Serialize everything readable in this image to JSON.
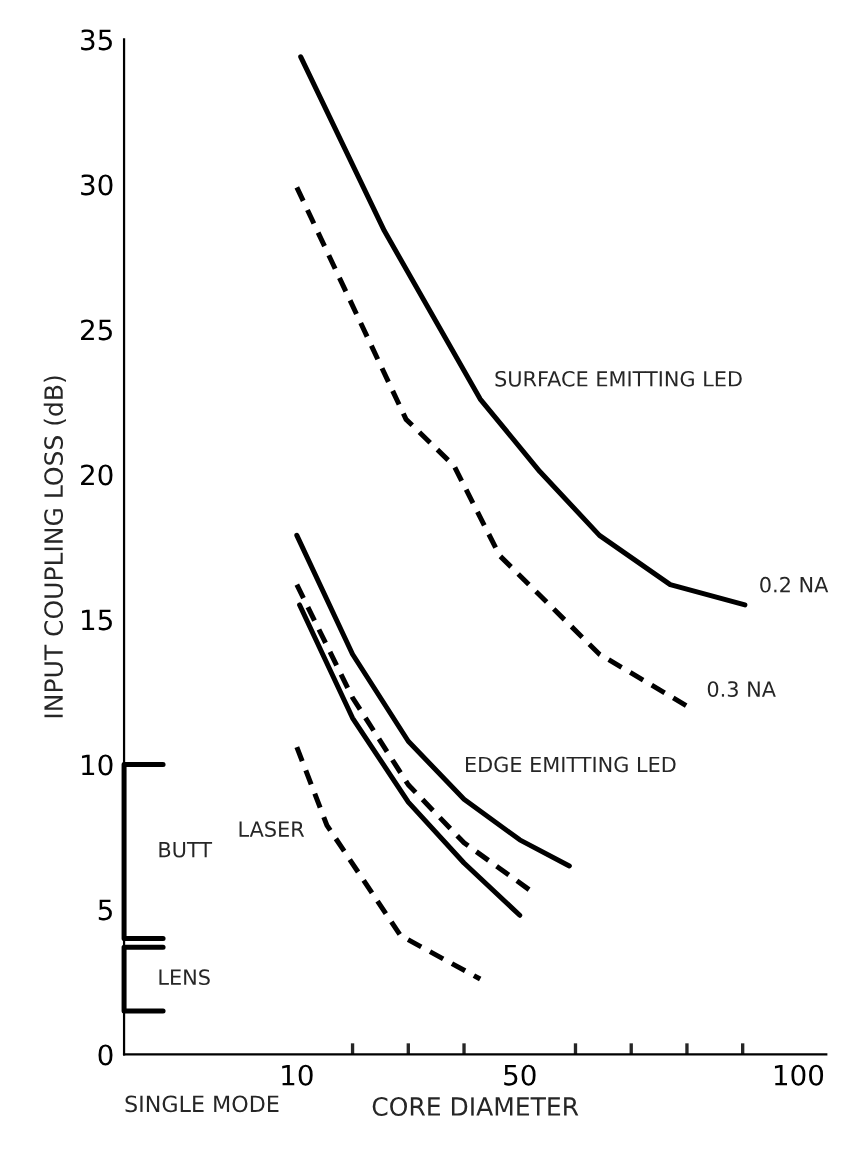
{
  "chart_data": {
    "type": "line",
    "xlabel": "CORE DIAMETER",
    "ylabel": "INPUT COUPLING LOSS (dB)",
    "xlim": [
      -21,
      105
    ],
    "ylim": [
      0,
      35
    ],
    "xticks": [
      10,
      {
        "value": 20,
        "label": null
      },
      {
        "value": 30,
        "label": null
      },
      {
        "value": 40,
        "label": null
      },
      50,
      {
        "value": 60,
        "label": null
      },
      {
        "value": 70,
        "label": null
      },
      {
        "value": 80,
        "label": null
      },
      {
        "value": 90,
        "label": null
      },
      100
    ],
    "yticks": [
      0,
      5,
      10,
      15,
      20,
      25,
      30,
      35
    ],
    "grid": false,
    "legend": false,
    "series": [
      {
        "color": "#000000",
        "line_style": "solid",
        "x": [
          10.7,
          25.7,
          42.9,
          53.6,
          64.3,
          77,
          90.4
        ],
        "values": [
          34.4,
          28.4,
          22.6,
          20.1,
          17.9,
          16.2,
          15.5
        ]
      },
      {
        "color": "#000000",
        "line_style": "dashed",
        "x": [
          10,
          29.6,
          38.2,
          46.4,
          64.3,
          81
        ],
        "values": [
          29.9,
          21.9,
          20.3,
          17.2,
          13.8,
          11.9
        ]
      },
      {
        "color": "#000000",
        "line_style": "solid",
        "x": [
          10,
          20,
          30,
          40,
          50,
          58.9
        ],
        "values": [
          17.9,
          13.8,
          10.8,
          8.8,
          7.4,
          6.5
        ]
      },
      {
        "color": "#000000",
        "line_style": "dashed",
        "x": [
          10,
          20,
          30,
          40,
          53
        ],
        "values": [
          16.2,
          12.3,
          9.3,
          7.3,
          5.5
        ]
      },
      {
        "color": "#000000",
        "line_style": "solid",
        "x": [
          10.5,
          20,
          30,
          40,
          50
        ],
        "values": [
          15.5,
          11.6,
          8.7,
          6.6,
          4.8
        ]
      },
      {
        "color": "#000000",
        "line_style": "dashed",
        "x": [
          10,
          15.4,
          28.6,
          42.9
        ],
        "values": [
          10.6,
          7.9,
          4.1,
          2.6
        ]
      },
      {
        "color": "#000000",
        "line_style": "solid",
        "x": [
          -14,
          -21,
          -21,
          -14
        ],
        "values": [
          10,
          10,
          4,
          4
        ]
      },
      {
        "color": "#000000",
        "line_style": "solid",
        "x": [
          -14,
          -21,
          -21,
          -14
        ],
        "values": [
          3.7,
          3.7,
          1.5,
          1.5
        ]
      }
    ],
    "annotations": [
      {
        "text": "SURFACE EMITTING LED",
        "x": 42.9,
        "y": 22.6
      },
      {
        "text": "0.2 NA",
        "x": 90.4,
        "y": 15.5
      },
      {
        "text": "0.3 NA",
        "x": 81,
        "y": 11.9
      },
      {
        "text": "EDGE EMITTING LED",
        "x": 37.5,
        "y": 9.3
      },
      {
        "text": "LASER",
        "x": 15.4,
        "y": 7.9
      },
      {
        "text": "BUTT",
        "x": -21,
        "y": 7
      },
      {
        "text": "LENS",
        "x": -21,
        "y": 2.6
      },
      "SINGLE MODE"
    ]
  }
}
